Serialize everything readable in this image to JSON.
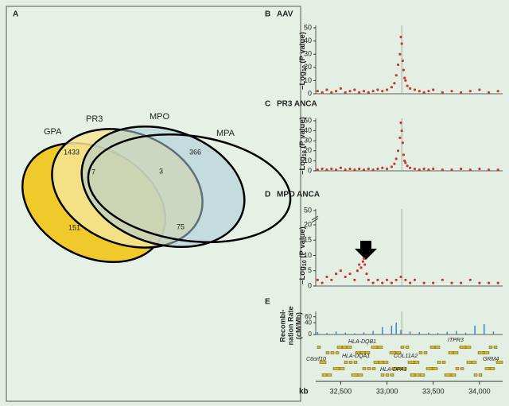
{
  "venn": {
    "panel": "A",
    "sets": [
      "GPA",
      "PR3",
      "MPO",
      "MPA"
    ],
    "counts": [
      1433,
      7,
      3,
      366,
      151,
      75
    ]
  },
  "chart_data": [
    {
      "type": "scatter",
      "panel": "B",
      "title": "AAV",
      "ylabel": [
        "–Log",
        "10",
        " (P value)"
      ],
      "color": "#c8392b",
      "xlim": [
        32230,
        34250
      ],
      "ylim": [
        0,
        50
      ],
      "yticks": [
        0,
        10,
        20,
        30,
        40,
        50
      ],
      "highlight_x": 33160,
      "x": [
        32250,
        32300,
        32350,
        32400,
        32450,
        32500,
        32550,
        32600,
        32650,
        32700,
        32750,
        32800,
        32850,
        32900,
        32950,
        33000,
        33050,
        33080,
        33100,
        33120,
        33140,
        33150,
        33160,
        33170,
        33180,
        33190,
        33200,
        33220,
        33250,
        33300,
        33350,
        33400,
        33450,
        33500,
        33600,
        33700,
        33800,
        33900,
        34000,
        34100,
        34200
      ],
      "values": [
        2,
        1,
        3,
        1,
        2,
        4,
        1,
        2,
        3,
        1,
        2,
        1,
        2,
        3,
        2,
        3,
        5,
        8,
        14,
        22,
        30,
        43,
        38,
        25,
        18,
        12,
        10,
        6,
        4,
        3,
        2,
        1,
        2,
        3,
        1,
        2,
        1,
        2,
        3,
        1,
        2
      ]
    },
    {
      "type": "scatter",
      "panel": "C",
      "title": "PR3 ANCA",
      "ylabel": [
        "–Log",
        "10",
        " (P value)"
      ],
      "color": "#c8392b",
      "xlim": [
        32230,
        34250
      ],
      "ylim": [
        0,
        50
      ],
      "yticks": [
        0,
        10,
        20,
        30,
        40,
        50
      ],
      "highlight_x": 33160,
      "x": [
        32250,
        32300,
        32350,
        32400,
        32450,
        32500,
        32550,
        32600,
        32650,
        32700,
        32750,
        32800,
        32850,
        32900,
        32950,
        33000,
        33050,
        33080,
        33100,
        33120,
        33140,
        33150,
        33160,
        33170,
        33180,
        33190,
        33200,
        33220,
        33250,
        33300,
        33350,
        33400,
        33450,
        33500,
        33600,
        33700,
        33800,
        33900,
        34000,
        34100,
        34200
      ],
      "values": [
        1,
        2,
        1,
        2,
        1,
        3,
        1,
        2,
        1,
        2,
        1,
        2,
        1,
        2,
        3,
        2,
        4,
        7,
        12,
        20,
        33,
        48,
        40,
        28,
        16,
        10,
        8,
        5,
        3,
        2,
        1,
        2,
        1,
        2,
        1,
        1,
        2,
        1,
        2,
        1,
        1
      ]
    },
    {
      "type": "scatter",
      "panel": "D",
      "title": "MPO ANCA",
      "ylabel": [
        "–Log",
        "10",
        " (P value)"
      ],
      "color": "#c8392b",
      "xlim": [
        32230,
        34250
      ],
      "ylim": [
        0,
        20
      ],
      "yticks": [
        0,
        5,
        10,
        15,
        20
      ],
      "ybreak_tick": 50,
      "highlight_x": 33160,
      "x": [
        32250,
        32300,
        32350,
        32400,
        32450,
        32500,
        32550,
        32600,
        32650,
        32680,
        32700,
        32720,
        32740,
        32750,
        32760,
        32780,
        32800,
        32850,
        32900,
        32950,
        33000,
        33050,
        33100,
        33150,
        33200,
        33250,
        33300,
        33400,
        33500,
        33600,
        33700,
        33800,
        33900,
        34000,
        34100,
        34200
      ],
      "values": [
        2,
        1,
        3,
        2,
        4,
        5,
        3,
        4,
        2,
        5,
        7,
        6,
        8,
        9,
        7,
        4,
        2,
        1,
        2,
        1,
        2,
        1,
        2,
        3,
        2,
        1,
        2,
        1,
        1,
        2,
        1,
        1,
        2,
        1,
        1,
        1
      ]
    },
    {
      "type": "bar",
      "panel": "E",
      "ylabel": [
        "Recombi-",
        "nation Rate",
        "(cM/Mb)"
      ],
      "color": "#3b86c4",
      "xlim": [
        32230,
        34250
      ],
      "ylim": [
        0,
        70
      ],
      "yticks": [
        0,
        40,
        60
      ],
      "highlight_x": 33160,
      "x": [
        32250,
        32350,
        32450,
        32550,
        32650,
        32750,
        32850,
        32950,
        33050,
        33100,
        33150,
        33250,
        33350,
        33450,
        33550,
        33650,
        33750,
        33850,
        33950,
        34050,
        34150
      ],
      "values": [
        8,
        5,
        10,
        6,
        4,
        7,
        12,
        25,
        30,
        40,
        15,
        10,
        8,
        6,
        5,
        9,
        12,
        6,
        30,
        35,
        10
      ],
      "genes": [
        "HLA-DQB1",
        "HLA-DQA1",
        "C6orf10",
        "COL11A2",
        "HLA-DPA1",
        "ITPR3",
        "GRM4"
      ],
      "xlabel": "kb",
      "xticks": [
        {
          "value": 32500,
          "label": "32,500"
        },
        {
          "value": 33000,
          "label": "33,000"
        },
        {
          "value": 33500,
          "label": "33,500"
        },
        {
          "value": 34000,
          "label": "34,000"
        }
      ]
    }
  ]
}
